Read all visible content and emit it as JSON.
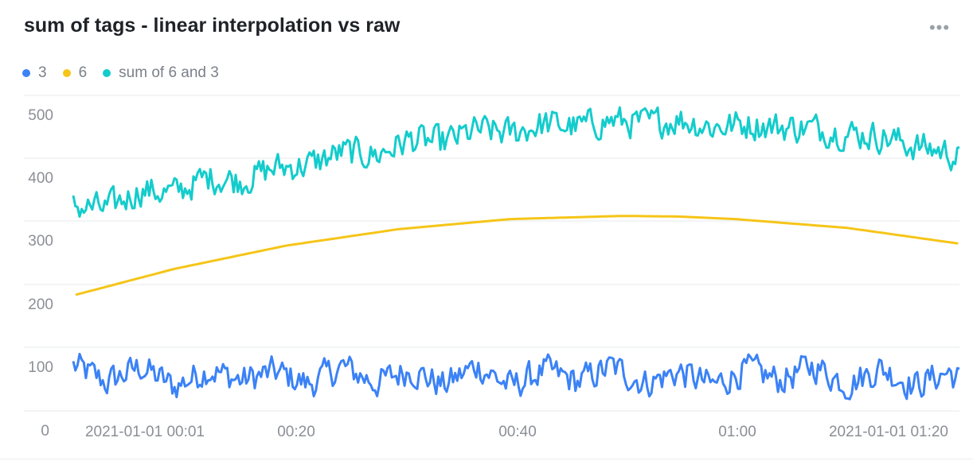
{
  "panel": {
    "title": "sum of tags - linear interpolation vs raw",
    "menu_label": "•••"
  },
  "colors": {
    "series_3": "#3b82f6",
    "series_6": "#f5c518",
    "series_sum": "#14cccc",
    "grid": "#e6e8eb"
  },
  "chart_data": {
    "type": "line",
    "title": "sum of tags - linear interpolation vs raw",
    "xlabel": "",
    "ylabel": "",
    "ylim": [
      0,
      500
    ],
    "yticks": [
      "0",
      "100",
      "200",
      "300",
      "400",
      "500"
    ],
    "xticks": [
      "2021-01-01 00:01",
      "00:20",
      "00:40",
      "01:00",
      "2021-01-01 01:20"
    ],
    "x_start": "2021-01-01 00:01",
    "x_end": "2021-01-01 01:20",
    "grid": true,
    "legend_position": "top-left",
    "series": [
      {
        "name": "3",
        "color": "#3b82f6",
        "description_values": "noisy series oscillating roughly between 10 and 100",
        "x_minutes": [
          1,
          4,
          7,
          10,
          13,
          16,
          19,
          22,
          25,
          28,
          31,
          34,
          37,
          40,
          43,
          46,
          49,
          52,
          55,
          58,
          61,
          64,
          67,
          70,
          73,
          76,
          79,
          80
        ],
        "values": [
          72,
          45,
          70,
          38,
          66,
          48,
          62,
          42,
          70,
          44,
          66,
          40,
          72,
          38,
          64,
          46,
          70,
          44,
          62,
          40,
          66,
          48,
          72,
          42,
          68,
          40,
          62,
          50
        ]
      },
      {
        "name": "6",
        "color": "#f5c518",
        "x_minutes": [
          1,
          10,
          20,
          30,
          40,
          50,
          55,
          60,
          70,
          80
        ],
        "values": [
          183,
          225,
          262,
          288,
          304,
          309,
          308,
          304,
          290,
          265
        ]
      },
      {
        "name": "sum of 6 and 3",
        "color": "#14cccc",
        "x_minutes": [
          1,
          4,
          7,
          10,
          13,
          16,
          19,
          22,
          25,
          28,
          31,
          34,
          37,
          40,
          43,
          46,
          49,
          52,
          55,
          58,
          61,
          64,
          67,
          70,
          73,
          76,
          79,
          80
        ],
        "values": [
          325,
          320,
          350,
          345,
          370,
          365,
          385,
          390,
          410,
          405,
          430,
          425,
          445,
          440,
          455,
          450,
          460,
          455,
          462,
          450,
          455,
          450,
          448,
          440,
          435,
          420,
          410,
          400
        ]
      }
    ]
  }
}
